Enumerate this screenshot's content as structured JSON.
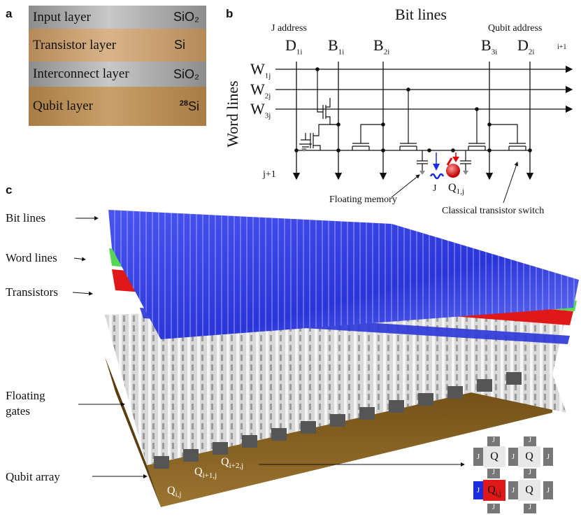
{
  "panel_a": {
    "label": "a",
    "layers": [
      {
        "name": "Input layer",
        "material": "SiO₂",
        "color": "#9a9a9a"
      },
      {
        "name": "Transistor layer",
        "material": "Si",
        "color": "#c19a6b"
      },
      {
        "name": "Interconnect layer",
        "material": "SiO₂",
        "color": "#9a9a9a"
      },
      {
        "name": "Qubit layer",
        "material_sup": "28",
        "material": "Si",
        "color": "#b88d5a"
      }
    ]
  },
  "panel_b": {
    "label": "b",
    "title": "Bit lines",
    "j_address": "J address",
    "qubit_address": "Qubit address",
    "word_lines_label": "Word lines",
    "column_labels": [
      {
        "main": "D",
        "sub": "1i"
      },
      {
        "main": "B",
        "sub": "1i"
      },
      {
        "main": "B",
        "sub": "2i"
      },
      {
        "main": "B",
        "sub": "3i"
      },
      {
        "main": "D",
        "sub": "2i"
      }
    ],
    "i_plus_1": "i+1",
    "row_labels": [
      {
        "main": "W",
        "sub": "1j"
      },
      {
        "main": "W",
        "sub": "2j"
      },
      {
        "main": "W",
        "sub": "3j"
      }
    ],
    "j_plus_1": "j+1",
    "j_label": "J",
    "qubit_label": {
      "main": "Q",
      "sub": "1,j"
    },
    "floating_memory": "Floating memory",
    "transistor_switch": "Classical transistor switch"
  },
  "panel_c": {
    "label": "c",
    "side_labels": {
      "bit_lines": "Bit lines",
      "word_lines": "Word lines",
      "transistors": "Transistors",
      "floating_gates_1": "Floating",
      "floating_gates_2": "gates",
      "qubit_array": "Qubit array"
    },
    "qubit_labels": [
      {
        "main": "Q",
        "sub": "i,j"
      },
      {
        "main": "Q",
        "sub": "i+1,j"
      },
      {
        "main": "Q",
        "sub": "i+2,j"
      }
    ],
    "grid": {
      "J": "J",
      "Q": "Q",
      "Qij_main": "Q",
      "Qij_sub": "i,j"
    },
    "colors": {
      "bit_lines": "#2a35e0",
      "word_lines": "#5ee05e",
      "transistors": "#e02020",
      "gates": "#e6e6e6",
      "substrate": "#8a6420"
    }
  }
}
